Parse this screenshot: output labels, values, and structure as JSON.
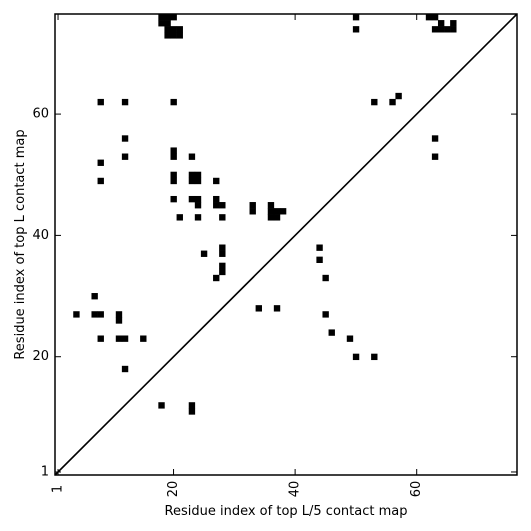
{
  "chart_data": {
    "type": "heatmap",
    "subtype": "contact-map",
    "title": "",
    "xlabel": "Residue index of top L/5 contact map",
    "ylabel": "Residue index of top L contact map",
    "xlim": [
      0.5,
      76.5
    ],
    "ylim": [
      0.5,
      76.5
    ],
    "x_ticks": [
      1,
      20,
      40,
      60
    ],
    "y_ticks": [
      1,
      20,
      40,
      60
    ],
    "x_tick_labels": [
      "1",
      "20",
      "40",
      "60"
    ],
    "y_tick_labels": [
      "1",
      "20",
      "40",
      "60"
    ],
    "x_tick_rotation": -90,
    "grid": false,
    "diagonal": true,
    "colors": {
      "contact": "#000000",
      "background": "#ffffff",
      "axes": "#000000"
    },
    "upper_triangle_points": [
      [
        18,
        76
      ],
      [
        19,
        76
      ],
      [
        20,
        76
      ],
      [
        18,
        75
      ],
      [
        19,
        75
      ],
      [
        19,
        74
      ],
      [
        20,
        74
      ],
      [
        21,
        74
      ],
      [
        19,
        73
      ],
      [
        20,
        73
      ],
      [
        21,
        73
      ],
      [
        8,
        62
      ],
      [
        12,
        62
      ],
      [
        20,
        62
      ],
      [
        12,
        56
      ],
      [
        20,
        54
      ],
      [
        20,
        53
      ],
      [
        12,
        53
      ],
      [
        23,
        53
      ],
      [
        8,
        52
      ],
      [
        20,
        50
      ],
      [
        23,
        50
      ],
      [
        24,
        50
      ],
      [
        20,
        49
      ],
      [
        23,
        49
      ],
      [
        24,
        49
      ],
      [
        8,
        49
      ],
      [
        27,
        49
      ],
      [
        20,
        46
      ],
      [
        23,
        46
      ],
      [
        24,
        46
      ],
      [
        27,
        46
      ],
      [
        24,
        45
      ],
      [
        27,
        45
      ],
      [
        28,
        45
      ],
      [
        33,
        45
      ],
      [
        36,
        45
      ],
      [
        33,
        44
      ],
      [
        36,
        44
      ],
      [
        37,
        44
      ],
      [
        38,
        44
      ],
      [
        21,
        43
      ],
      [
        24,
        43
      ],
      [
        28,
        43
      ],
      [
        36,
        43
      ],
      [
        37,
        43
      ],
      [
        50,
        76
      ],
      [
        50,
        74
      ],
      [
        62,
        76
      ],
      [
        63,
        76
      ],
      [
        64,
        75
      ],
      [
        64,
        74
      ],
      [
        65,
        74
      ],
      [
        66,
        74
      ],
      [
        66,
        75
      ],
      [
        63,
        74
      ],
      [
        53,
        62
      ],
      [
        56,
        62
      ],
      [
        57,
        63
      ],
      [
        63,
        56
      ],
      [
        63,
        53
      ]
    ],
    "lower_triangle_points": [
      [
        28,
        38
      ],
      [
        28,
        37
      ],
      [
        25,
        37
      ],
      [
        28,
        35
      ],
      [
        28,
        34
      ],
      [
        27,
        33
      ],
      [
        44,
        38
      ],
      [
        44,
        36
      ],
      [
        45,
        33
      ],
      [
        7,
        30
      ],
      [
        4,
        27
      ],
      [
        7,
        27
      ],
      [
        8,
        27
      ],
      [
        11,
        27
      ],
      [
        11,
        26
      ],
      [
        34,
        28
      ],
      [
        37,
        28
      ],
      [
        45,
        27
      ],
      [
        8,
        23
      ],
      [
        11,
        23
      ],
      [
        12,
        23
      ],
      [
        15,
        23
      ],
      [
        46,
        24
      ],
      [
        49,
        23
      ],
      [
        50,
        20
      ],
      [
        53,
        20
      ],
      [
        12,
        18
      ],
      [
        18,
        12
      ],
      [
        23,
        12
      ],
      [
        23,
        11
      ]
    ]
  }
}
